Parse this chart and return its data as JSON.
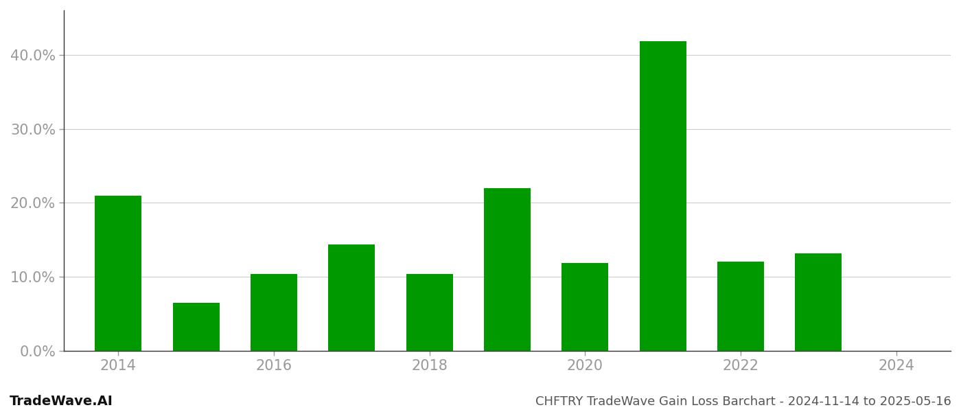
{
  "years": [
    2014,
    2015,
    2016,
    2017,
    2018,
    2019,
    2020,
    2021,
    2022,
    2023,
    2024
  ],
  "values": [
    0.21,
    0.065,
    0.104,
    0.144,
    0.104,
    0.22,
    0.119,
    0.418,
    0.121,
    0.132,
    0.0
  ],
  "bar_color": "#009900",
  "title": "CHFTRY TradeWave Gain Loss Barchart - 2024-11-14 to 2025-05-16",
  "watermark": "TradeWave.AI",
  "xlim": [
    2013.3,
    2024.7
  ],
  "ylim": [
    0.0,
    0.46
  ],
  "yticks": [
    0.0,
    0.1,
    0.2,
    0.3,
    0.4
  ],
  "ytick_labels": [
    "0.0%",
    "10.0%",
    "20.0%",
    "30.0%",
    "40.0%"
  ],
  "xtick_positions": [
    2014,
    2016,
    2018,
    2020,
    2022,
    2024
  ],
  "background_color": "#ffffff",
  "grid_color": "#cccccc",
  "bar_width": 0.6,
  "ytick_fontsize": 15,
  "xtick_fontsize": 15,
  "watermark_fontsize": 14,
  "title_fontsize": 13
}
